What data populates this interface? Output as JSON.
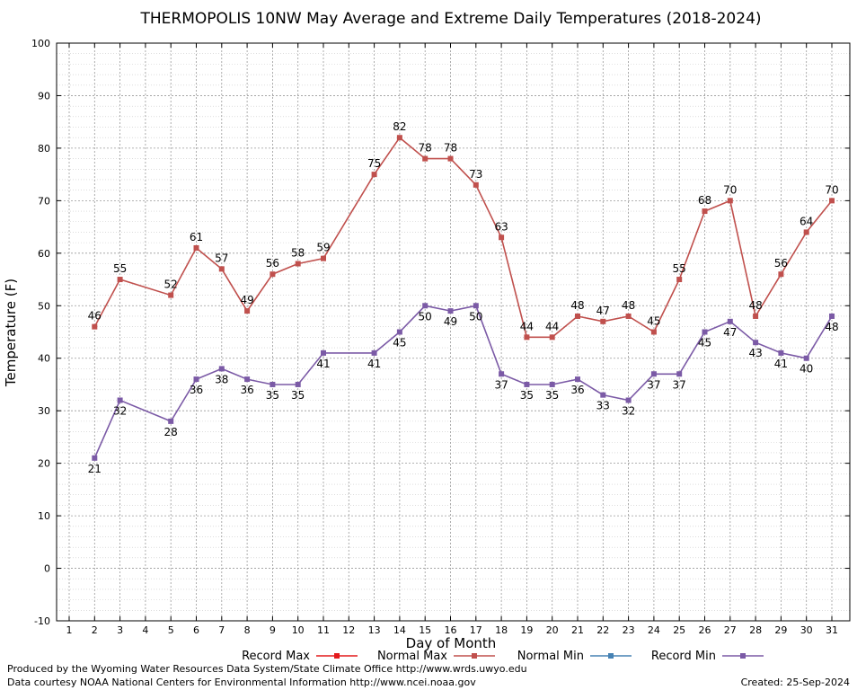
{
  "chart_data": {
    "type": "line",
    "title": "THERMOPOLIS 10NW May Average and Extreme Daily Temperatures (2018-2024)",
    "xlabel": "Day of Month",
    "ylabel": "Temperature (F)",
    "xlim": [
      1,
      31
    ],
    "ylim": [
      -10,
      100
    ],
    "yticks": [
      -10,
      0,
      10,
      20,
      30,
      40,
      50,
      60,
      70,
      80,
      90,
      100
    ],
    "xticks": [
      1,
      2,
      3,
      4,
      5,
      6,
      7,
      8,
      9,
      10,
      11,
      12,
      13,
      14,
      15,
      16,
      17,
      18,
      19,
      20,
      21,
      22,
      23,
      24,
      25,
      26,
      27,
      28,
      29,
      30,
      31
    ],
    "grid": true,
    "legend_position": "bottom",
    "series": [
      {
        "name": "Record Max",
        "color": "#e41a1c",
        "points": []
      },
      {
        "name": "Normal Max",
        "color": "#c0504d",
        "points": [
          [
            2,
            46
          ],
          [
            3,
            55
          ],
          [
            5,
            52
          ],
          [
            6,
            61
          ],
          [
            7,
            57
          ],
          [
            8,
            49
          ],
          [
            9,
            56
          ],
          [
            10,
            58
          ],
          [
            11,
            59
          ],
          [
            13,
            75
          ],
          [
            14,
            82
          ],
          [
            15,
            78
          ],
          [
            16,
            78
          ],
          [
            17,
            73
          ],
          [
            18,
            63
          ],
          [
            19,
            44
          ],
          [
            20,
            44
          ],
          [
            21,
            48
          ],
          [
            22,
            47
          ],
          [
            23,
            48
          ],
          [
            24,
            45
          ],
          [
            25,
            55
          ],
          [
            26,
            68
          ],
          [
            27,
            70
          ],
          [
            28,
            48
          ],
          [
            29,
            56
          ],
          [
            30,
            64
          ],
          [
            31,
            70
          ]
        ]
      },
      {
        "name": "Normal Min",
        "color": "#4682b4",
        "points": []
      },
      {
        "name": "Record Min",
        "color": "#7b5aa6",
        "points": [
          [
            2,
            21
          ],
          [
            3,
            32
          ],
          [
            5,
            28
          ],
          [
            6,
            36
          ],
          [
            7,
            38
          ],
          [
            8,
            36
          ],
          [
            9,
            35
          ],
          [
            10,
            35
          ],
          [
            11,
            41
          ],
          [
            13,
            41
          ],
          [
            14,
            45
          ],
          [
            15,
            50
          ],
          [
            16,
            49
          ],
          [
            17,
            50
          ],
          [
            18,
            37
          ],
          [
            19,
            35
          ],
          [
            20,
            35
          ],
          [
            21,
            36
          ],
          [
            22,
            33
          ],
          [
            23,
            32
          ],
          [
            24,
            37
          ],
          [
            25,
            37
          ],
          [
            26,
            45
          ],
          [
            27,
            47
          ],
          [
            28,
            43
          ],
          [
            29,
            41
          ],
          [
            30,
            40
          ],
          [
            31,
            48
          ]
        ]
      }
    ]
  },
  "footer": {
    "produced_by": "Produced by the Wyoming Water Resources Data System/State Climate Office http://www.wrds.uwyo.edu",
    "data_courtesy": "Data courtesy NOAA National Centers for Environmental Information http://www.ncei.noaa.gov",
    "created": "Created:  25-Sep-2024"
  }
}
